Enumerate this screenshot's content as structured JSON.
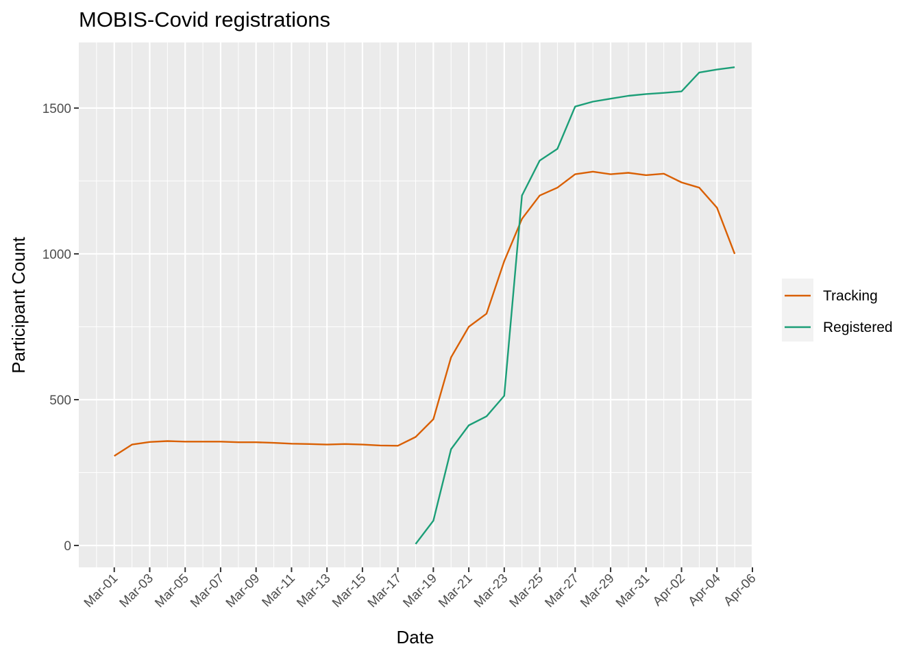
{
  "chart_data": {
    "type": "line",
    "title": "MOBIS-Covid registrations",
    "xlabel": "Date",
    "ylabel": "Participant Count",
    "x_range": [
      "2020-02-28",
      "2020-04-06"
    ],
    "ylim": [
      -75,
      1725
    ],
    "y_ticks": [
      0,
      500,
      1000,
      1500
    ],
    "y_tick_labels": [
      "0",
      "500",
      "1000",
      "1500"
    ],
    "x_ticks": [
      "2020-03-01",
      "2020-03-03",
      "2020-03-05",
      "2020-03-07",
      "2020-03-09",
      "2020-03-11",
      "2020-03-13",
      "2020-03-15",
      "2020-03-17",
      "2020-03-19",
      "2020-03-21",
      "2020-03-23",
      "2020-03-25",
      "2020-03-27",
      "2020-03-29",
      "2020-03-31",
      "2020-04-02",
      "2020-04-04",
      "2020-04-06"
    ],
    "x_tick_labels": [
      "Mar-01",
      "Mar-03",
      "Mar-05",
      "Mar-07",
      "Mar-09",
      "Mar-11",
      "Mar-13",
      "Mar-15",
      "Mar-17",
      "Mar-19",
      "Mar-21",
      "Mar-23",
      "Mar-25",
      "Mar-27",
      "Mar-29",
      "Mar-31",
      "Apr-02",
      "Apr-04",
      "Apr-06"
    ],
    "grid": true,
    "legend_position": "right",
    "series": [
      {
        "name": "Tracking",
        "color": "#D95F02",
        "points": [
          [
            "2020-03-01",
            307
          ],
          [
            "2020-03-02",
            346
          ],
          [
            "2020-03-03",
            355
          ],
          [
            "2020-03-04",
            358
          ],
          [
            "2020-03-05",
            356
          ],
          [
            "2020-03-06",
            356
          ],
          [
            "2020-03-07",
            356
          ],
          [
            "2020-03-08",
            354
          ],
          [
            "2020-03-09",
            354
          ],
          [
            "2020-03-10",
            352
          ],
          [
            "2020-03-11",
            349
          ],
          [
            "2020-03-12",
            348
          ],
          [
            "2020-03-13",
            346
          ],
          [
            "2020-03-14",
            348
          ],
          [
            "2020-03-15",
            346
          ],
          [
            "2020-03-16",
            343
          ],
          [
            "2020-03-17",
            342
          ],
          [
            "2020-03-18",
            372
          ],
          [
            "2020-03-19",
            433
          ],
          [
            "2020-03-20",
            645
          ],
          [
            "2020-03-21",
            750
          ],
          [
            "2020-03-22",
            795
          ],
          [
            "2020-03-23",
            975
          ],
          [
            "2020-03-24",
            1120
          ],
          [
            "2020-03-25",
            1200
          ],
          [
            "2020-03-26",
            1227
          ],
          [
            "2020-03-27",
            1273
          ],
          [
            "2020-03-28",
            1282
          ],
          [
            "2020-03-29",
            1273
          ],
          [
            "2020-03-30",
            1278
          ],
          [
            "2020-03-31",
            1270
          ],
          [
            "2020-04-01",
            1275
          ],
          [
            "2020-04-02",
            1245
          ],
          [
            "2020-04-03",
            1227
          ],
          [
            "2020-04-04",
            1158
          ],
          [
            "2020-04-05",
            1000
          ]
        ]
      },
      {
        "name": "Registered",
        "color": "#1B9E77",
        "points": [
          [
            "2020-03-18",
            5
          ],
          [
            "2020-03-19",
            85
          ],
          [
            "2020-03-20",
            330
          ],
          [
            "2020-03-21",
            412
          ],
          [
            "2020-03-22",
            443
          ],
          [
            "2020-03-23",
            513
          ],
          [
            "2020-03-24",
            1200
          ],
          [
            "2020-03-25",
            1320
          ],
          [
            "2020-03-26",
            1360
          ],
          [
            "2020-03-27",
            1505
          ],
          [
            "2020-03-28",
            1522
          ],
          [
            "2020-03-29",
            1532
          ],
          [
            "2020-03-30",
            1542
          ],
          [
            "2020-03-31",
            1548
          ],
          [
            "2020-04-01",
            1552
          ],
          [
            "2020-04-02",
            1557
          ],
          [
            "2020-04-03",
            1622
          ],
          [
            "2020-04-04",
            1632
          ],
          [
            "2020-04-05",
            1640
          ]
        ]
      }
    ]
  }
}
